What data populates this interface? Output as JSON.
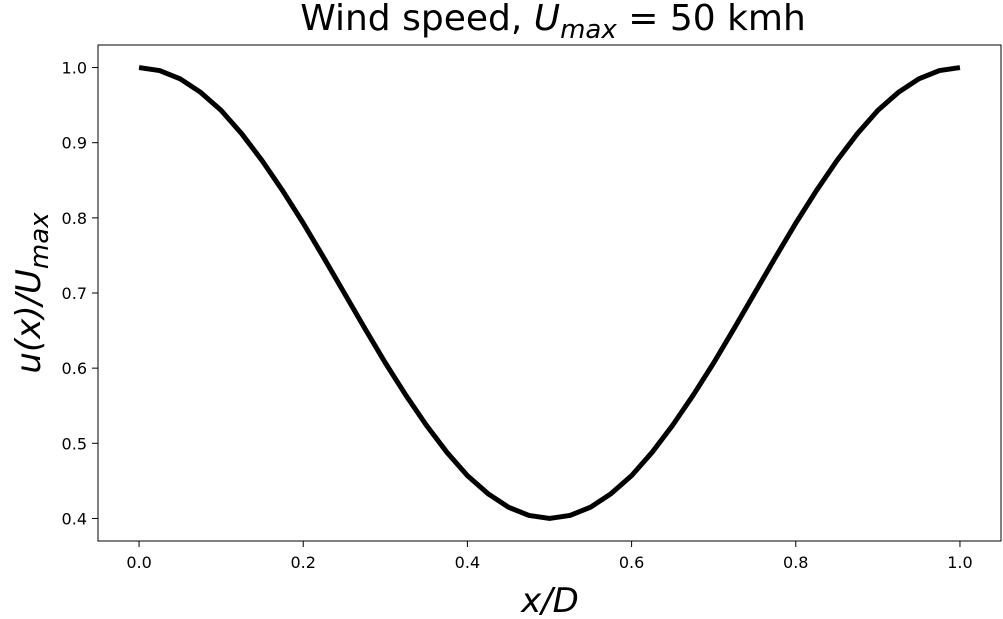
{
  "chart_data": {
    "type": "line",
    "title": [
      "Wind speed, ",
      "U",
      "max",
      " = 50 kmh"
    ],
    "xlabel": "x/D",
    "ylabel": [
      "u(x)/U",
      "max"
    ],
    "x": [
      0,
      0.025,
      0.05,
      0.075,
      0.1,
      0.125,
      0.15,
      0.175,
      0.2,
      0.225,
      0.25,
      0.275,
      0.3,
      0.325,
      0.35,
      0.375,
      0.4,
      0.425,
      0.45,
      0.475,
      0.5,
      0.525,
      0.55,
      0.575,
      0.6,
      0.625,
      0.65,
      0.675,
      0.7,
      0.725,
      0.75,
      0.775,
      0.8,
      0.825,
      0.85,
      0.875,
      0.9,
      0.925,
      0.95,
      0.975,
      1.0
    ],
    "series": [
      {
        "color": "#000000",
        "values": [
          1.0,
          0.996,
          0.985,
          0.967,
          0.943,
          0.912,
          0.876,
          0.836,
          0.793,
          0.747,
          0.7,
          0.653,
          0.607,
          0.564,
          0.524,
          0.488,
          0.457,
          0.433,
          0.415,
          0.404,
          0.4,
          0.404,
          0.415,
          0.433,
          0.457,
          0.488,
          0.524,
          0.564,
          0.607,
          0.653,
          0.7,
          0.747,
          0.793,
          0.836,
          0.876,
          0.912,
          0.943,
          0.967,
          0.985,
          0.996,
          1.0
        ]
      }
    ],
    "xlim": [
      -0.05,
      1.05
    ],
    "ylim": [
      0.37,
      1.03
    ],
    "xticks": [
      {
        "value": 0,
        "label": "0.0"
      },
      0.2,
      0.4,
      0.6,
      0.8,
      {
        "value": 1,
        "label": "1.0"
      }
    ],
    "yticks": [
      0.4,
      0.5,
      0.6,
      0.7,
      0.8,
      0.9,
      {
        "value": 1,
        "label": "1.0"
      }
    ],
    "grid": false
  }
}
